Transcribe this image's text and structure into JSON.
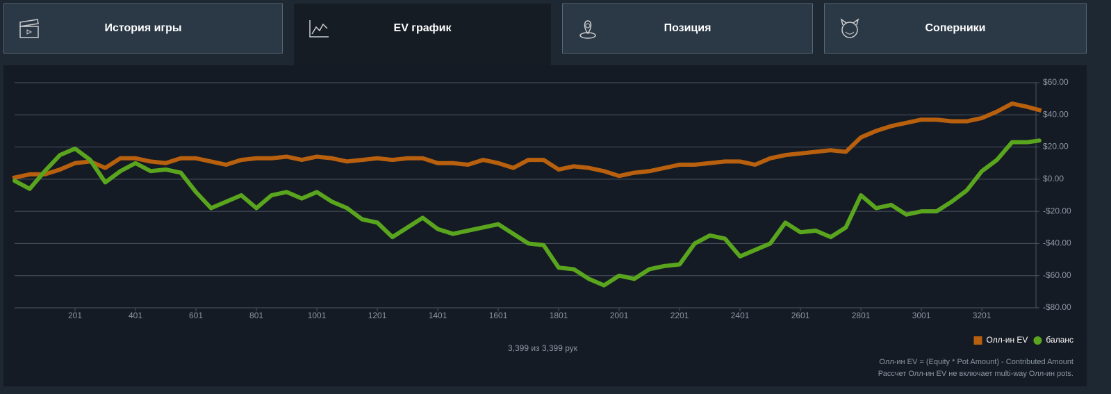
{
  "tabs": [
    {
      "label": "История игры"
    },
    {
      "label": "EV график"
    },
    {
      "label": "Позиция"
    },
    {
      "label": "Соперники"
    }
  ],
  "chart_data": {
    "type": "line",
    "x": [
      1,
      51,
      101,
      151,
      201,
      251,
      301,
      351,
      401,
      451,
      501,
      551,
      601,
      651,
      701,
      751,
      801,
      851,
      901,
      951,
      1001,
      1051,
      1101,
      1151,
      1201,
      1251,
      1301,
      1351,
      1401,
      1451,
      1501,
      1551,
      1601,
      1651,
      1701,
      1751,
      1801,
      1851,
      1901,
      1951,
      2001,
      2051,
      2101,
      2151,
      2201,
      2251,
      2301,
      2351,
      2401,
      2451,
      2501,
      2551,
      2601,
      2651,
      2701,
      2751,
      2801,
      2851,
      2901,
      2951,
      3001,
      3051,
      3101,
      3151,
      3201,
      3251,
      3301,
      3351,
      3391
    ],
    "series": [
      {
        "name": "Олл-ин EV",
        "color": "#b8600e",
        "marker": "square",
        "values": [
          1,
          3,
          3,
          6,
          10,
          11,
          7,
          13,
          13,
          11,
          10,
          13,
          13,
          11,
          9,
          12,
          13,
          13,
          14,
          12,
          14,
          13,
          11,
          12,
          13,
          12,
          13,
          13,
          10,
          10,
          9,
          12,
          10,
          7,
          12,
          12,
          6,
          8,
          7,
          5,
          2,
          4,
          5,
          7,
          9,
          9,
          10,
          11,
          11,
          9,
          13,
          15,
          16,
          17,
          18,
          17,
          26,
          30,
          33,
          35,
          37,
          37,
          36,
          36,
          38,
          42,
          47,
          45,
          43
        ]
      },
      {
        "name": "баланс",
        "color": "#5aa51e",
        "marker": "circle",
        "values": [
          -1,
          -6,
          5,
          15,
          19,
          12,
          -2,
          5,
          10,
          5,
          6,
          4,
          -8,
          -18,
          -14,
          -10,
          -18,
          -10,
          -8,
          -12,
          -8,
          -14,
          -18,
          -25,
          -27,
          -36,
          -30,
          -24,
          -31,
          -34,
          -32,
          -30,
          -28,
          -34,
          -40,
          -41,
          -55,
          -56,
          -62,
          -66,
          -60,
          -62,
          -56,
          -54,
          -53,
          -40,
          -35,
          -37,
          -48,
          -44,
          -40,
          -27,
          -33,
          -32,
          -36,
          -30,
          -10,
          -18,
          -16,
          -22,
          -20,
          -20,
          -14,
          -7,
          5,
          12,
          23,
          23,
          24
        ]
      }
    ],
    "xlim": [
      1,
      3380
    ],
    "xticks": [
      201,
      401,
      601,
      801,
      1001,
      1201,
      1401,
      1601,
      1801,
      2001,
      2201,
      2401,
      2601,
      2801,
      3001,
      3201
    ],
    "ylim": [
      -80,
      60
    ],
    "yticks": [
      {
        "value": 60,
        "label": "$60.00"
      },
      {
        "value": 40,
        "label": "$40.00"
      },
      {
        "value": 20,
        "label": "$20.00"
      },
      {
        "value": 0,
        "label": "$0.00"
      },
      {
        "value": -20,
        "label": "-$20.00"
      },
      {
        "value": -40,
        "label": "-$40.00"
      },
      {
        "value": -60,
        "label": "-$60.00"
      },
      {
        "value": -80,
        "label": "-$80.00"
      }
    ],
    "grid": true,
    "legend": "bottom-right",
    "caption": "3,399 из 3,399 рук",
    "notes": [
      "Олл-ин EV = (Equity * Pot Amount) - Contributed Amount",
      "Рассчет Олл-ин EV не включает multi-way Олл-ин pots."
    ]
  }
}
